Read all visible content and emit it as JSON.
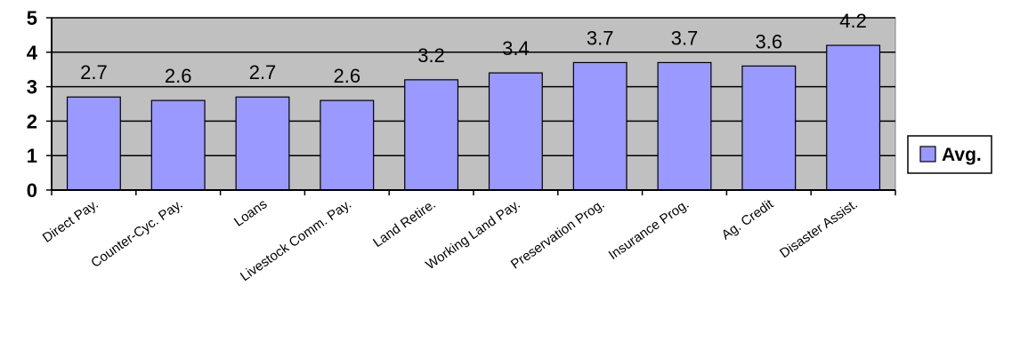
{
  "chart_data": {
    "type": "bar",
    "categories": [
      "Direct Pay.",
      "Counter-Cyc. Pay.",
      "Loans",
      "Livestock Comm. Pay.",
      "Land Retire.",
      "Working Land Pay.",
      "Preservation Prog.",
      "Insurance Prog.",
      "Ag. Credit",
      "Disaster Assist."
    ],
    "series": [
      {
        "name": "Avg.",
        "values": [
          2.7,
          2.6,
          2.7,
          2.6,
          3.2,
          3.4,
          3.7,
          3.7,
          3.6,
          4.2
        ]
      }
    ],
    "data_labels": [
      "2.7",
      "2.6",
      "2.7",
      "2.6",
      "3.2",
      "3.4",
      "3.7",
      "3.7",
      "3.6",
      "4.2"
    ],
    "ylim": [
      0,
      5
    ],
    "yticks": [
      "0",
      "1",
      "2",
      "3",
      "4",
      "5"
    ],
    "grid": true,
    "legend_position": "right",
    "colors": {
      "plot_background": "#c0c0c0",
      "bar_fill": "#9999ff",
      "bar_stroke": "#000000",
      "gridline": "#000000"
    }
  }
}
